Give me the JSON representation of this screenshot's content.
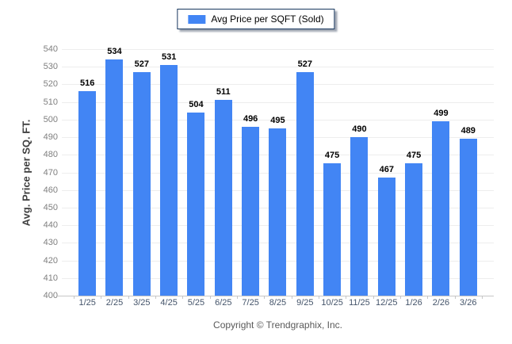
{
  "legend": {
    "label": "Avg Price per SQFT (Sold)"
  },
  "chart_data": {
    "type": "bar",
    "title": "",
    "series_name": "Avg Price per SQFT (Sold)",
    "categories": [
      "1/25",
      "2/25",
      "3/25",
      "4/25",
      "5/25",
      "6/25",
      "7/25",
      "8/25",
      "9/25",
      "10/25",
      "11/25",
      "12/25",
      "1/26",
      "2/26",
      "3/26"
    ],
    "values": [
      516,
      534,
      527,
      531,
      504,
      511,
      496,
      495,
      527,
      475,
      490,
      467,
      475,
      499,
      489
    ],
    "xlabel": "",
    "ylabel": "Avg. Price per SQ. FT.",
    "ylim": [
      400,
      540
    ],
    "ytick_step": 10,
    "grid": true,
    "legend_position": "top-center",
    "bar_color": "#4285f4",
    "value_labels": true
  },
  "footer": {
    "copyright": "Copyright © Trendgraphix, Inc."
  },
  "colors": {
    "bar": "#4285f4",
    "gridline": "#ededed",
    "axis_line": "#c6c6c6",
    "y_tick_text": "#7f7f7f",
    "x_tick_text": "#44546a",
    "value_label_text": "#000000",
    "y_title_text": "#3f3f3f",
    "footer_text": "#595959",
    "legend_border": "#17375e"
  }
}
